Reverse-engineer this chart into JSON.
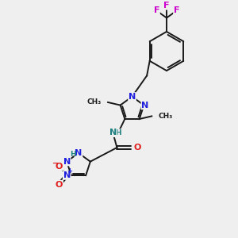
{
  "bg_color": "#efefef",
  "bond_color": "#1a1a1a",
  "nitrogen_color": "#2020dd",
  "oxygen_color": "#dd2020",
  "fluorine_color": "#cc00cc",
  "nh_color": "#208080",
  "figsize": [
    3.0,
    3.0
  ],
  "dpi": 100,
  "xlim": [
    0,
    10
  ],
  "ylim": [
    0,
    10
  ]
}
